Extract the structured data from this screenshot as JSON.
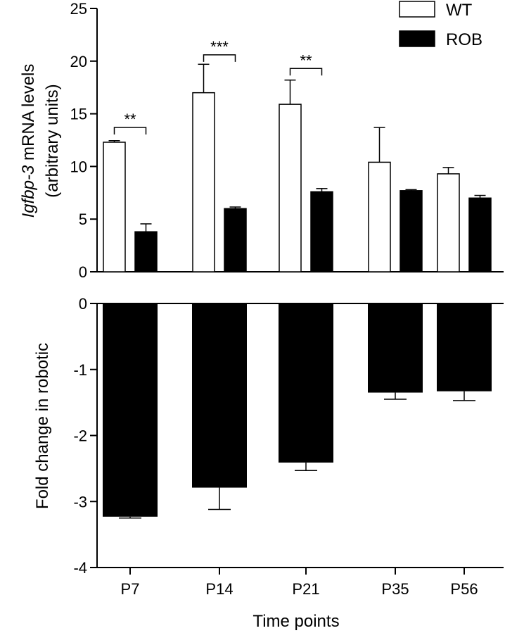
{
  "chart_data": [
    {
      "type": "bar",
      "ylabel_italic": "Igfbp-3",
      "ylabel_rest": " mRNA levels",
      "ylabel_line2": "(arbitrary units)",
      "categories": [
        "P7",
        "P14",
        "P21",
        "P35",
        "P56"
      ],
      "ylim": [
        0,
        25
      ],
      "yticks": [
        "0",
        "5",
        "10",
        "15",
        "20",
        "25"
      ],
      "legend_position": "top-right",
      "series": [
        {
          "name": "WT",
          "fill": "#ffffff",
          "values": [
            12.3,
            17.0,
            15.9,
            10.4,
            9.3
          ],
          "errors": [
            0.15,
            2.7,
            2.3,
            3.3,
            0.6
          ]
        },
        {
          "name": "ROB",
          "fill": "#000000",
          "values": [
            3.8,
            6.0,
            7.6,
            7.7,
            7.0
          ],
          "errors": [
            0.75,
            0.15,
            0.3,
            0.1,
            0.25
          ]
        }
      ],
      "significance": [
        {
          "category": "P7",
          "label": "**",
          "y": 13.7
        },
        {
          "category": "P14",
          "label": "***",
          "y": 20.6
        },
        {
          "category": "P21",
          "label": "**",
          "y": 19.3
        }
      ]
    },
    {
      "type": "bar",
      "ylabel": "Fold change in robotic",
      "xlabel": "Time points",
      "categories": [
        "P7",
        "P14",
        "P21",
        "P35",
        "P56"
      ],
      "ylim": [
        -4,
        0
      ],
      "yticks": [
        "0",
        "-1",
        "-2",
        "-3",
        "-4"
      ],
      "series": [
        {
          "fill": "#000000",
          "values": [
            -3.23,
            -2.79,
            -2.41,
            -1.35,
            -1.33
          ],
          "errors": [
            0.02,
            0.33,
            0.12,
            0.1,
            0.14
          ]
        }
      ]
    }
  ]
}
